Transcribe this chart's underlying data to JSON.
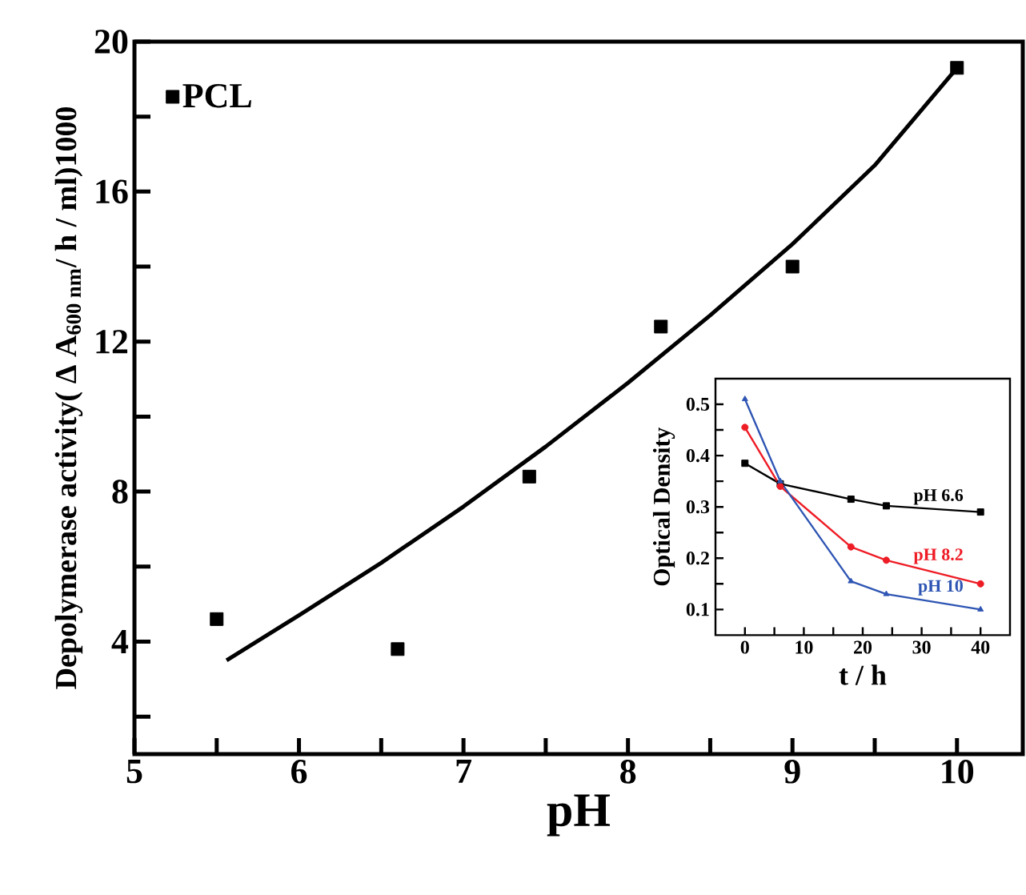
{
  "chart_data": [
    {
      "type": "scatter",
      "xlabel": "pH",
      "ylabel": "Depolymerase activity( Δ A$_{600 nm}$/ h / ml)1000",
      "legend": "top left",
      "xlim": [
        5,
        10.4
      ],
      "ylim": [
        1,
        20
      ],
      "xticks": [
        5,
        {
          "value": 5.5,
          "label": null
        },
        6,
        {
          "value": 6.5,
          "label": null
        },
        7,
        {
          "value": 7.5,
          "label": null
        },
        8,
        {
          "value": 8.5,
          "label": null
        },
        9,
        {
          "value": 9.5,
          "label": null
        },
        10
      ],
      "yticks": [
        {
          "value": 2,
          "label": null
        },
        4,
        {
          "value": 6,
          "label": null
        },
        8,
        {
          "value": 10,
          "label": null
        },
        12,
        {
          "value": 14,
          "label": null
        },
        16,
        {
          "value": 18,
          "label": null
        },
        20
      ],
      "series": [
        {
          "name": "PCL",
          "type": "scatter",
          "marker": "square",
          "color": "#000000",
          "x": [
            5.5,
            6.6,
            7.4,
            8.2,
            9.0,
            10.0
          ],
          "values": [
            4.6,
            3.8,
            8.4,
            12.4,
            14.0,
            19.3
          ]
        },
        {
          "type": "line",
          "marker": "none",
          "color": "#000000",
          "x": [
            5.56,
            6,
            6.5,
            7,
            7.5,
            8,
            8.5,
            9,
            9.5,
            10
          ],
          "values": [
            3.5,
            4.7,
            6.1,
            7.6,
            9.2,
            10.9,
            12.7,
            14.6,
            16.7,
            19.3
          ]
        }
      ]
    },
    {
      "type": "line",
      "xlabel": "t / h",
      "ylabel": "Optical Density",
      "xlim": [
        -5,
        45
      ],
      "ylim": [
        0.05,
        0.55
      ],
      "xticks": [
        0,
        {
          "value": 5,
          "label": null
        },
        10,
        {
          "value": 15,
          "label": null
        },
        20,
        {
          "value": 25,
          "label": null
        },
        30,
        {
          "value": 35,
          "label": null
        },
        40
      ],
      "yticks": [
        0.1,
        {
          "value": 0.15,
          "label": null
        },
        0.2,
        {
          "value": 0.25,
          "label": null
        },
        0.3,
        {
          "value": 0.35,
          "label": null
        },
        0.4,
        {
          "value": 0.45,
          "label": null
        },
        0.5
      ],
      "x": [
        0,
        6,
        18,
        24,
        40
      ],
      "series": [
        {
          "name": "pH 6.6",
          "marker": "square",
          "color": "#000000",
          "values": [
            0.385,
            0.345,
            0.315,
            0.302,
            0.29
          ]
        },
        {
          "name": "pH 8.2",
          "marker": "circle",
          "color": "#ee1c25",
          "values": [
            0.455,
            0.34,
            0.222,
            0.196,
            0.15
          ]
        },
        {
          "name": "pH 10",
          "marker": "triangle",
          "color": "#2e55b3",
          "values": [
            0.51,
            0.35,
            0.155,
            0.13,
            0.1
          ]
        }
      ]
    }
  ]
}
